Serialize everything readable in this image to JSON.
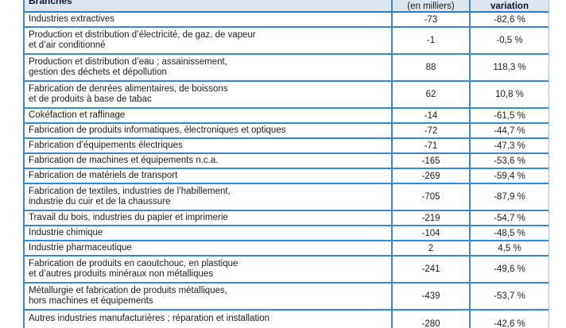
{
  "colors": {
    "border_blue": "#3c89c9",
    "border_blue_dark": "#2e7cc0",
    "border_blue_light": "#9cc2e5",
    "header_background": "#dce6f1",
    "text": "#1c1c1c"
  },
  "table": {
    "header": {
      "branches_label": "Branches",
      "value_unit_label": "(en milliers)",
      "variation_label": "variation"
    },
    "rows": [
      {
        "label": "Industries extractives",
        "value": "-73",
        "variation": "-82,6 %",
        "lines": 1
      },
      {
        "label": "Production et distribution d’électricité, de gaz, de vapeur\net d’air conditionné",
        "value": "-1",
        "variation": "-0,5 %",
        "lines": 2
      },
      {
        "label": "Production et distribution d’eau ; assainissement,\ngestion des déchets et dépollution",
        "value": "88",
        "variation": "118,3 %",
        "lines": 2
      },
      {
        "label": "Fabrication de denrées alimentaires, de boissons\net de produits à base de tabac",
        "value": "62",
        "variation": "10,8 %",
        "lines": 2
      },
      {
        "label": "Cokéfaction et raffinage",
        "value": "-14",
        "variation": "-61,5 %",
        "lines": 1
      },
      {
        "label": "Fabrication de produits informatiques, électroniques et optiques",
        "value": "-72",
        "variation": "-44,7 %",
        "lines": 1
      },
      {
        "label": "Fabrication d’équipements électriques",
        "value": "-71",
        "variation": "-47,3 %",
        "lines": 1
      },
      {
        "label": "Fabrication de machines et équipements n.c.a.",
        "value": "-165",
        "variation": "-53,6 %",
        "lines": 1
      },
      {
        "label": "Fabrication de matériels de transport",
        "value": "-269",
        "variation": "-59,4 %",
        "lines": 1
      },
      {
        "label": "Fabrication de textiles, industries de l’habillement,\nindustrie du cuir et de la chaussure",
        "value": "-705",
        "variation": "-87,9 %",
        "lines": 2
      },
      {
        "label": "Travail du bois, industries du papier et imprimerie",
        "value": "-219",
        "variation": "-54,7 %",
        "lines": 1
      },
      {
        "label": "Industrie chimique",
        "value": "-104",
        "variation": "-48,5 %",
        "lines": 1
      },
      {
        "label": "Industrie pharmaceutique",
        "value": "2",
        "variation": "4,5 %",
        "lines": 1
      },
      {
        "label": "Fabrication de produits en caoutchouc, en plastique\net d’autres produits minéraux non métalliques",
        "value": "-241",
        "variation": "-49,6 %",
        "lines": 2
      },
      {
        "label": "Métallurgie et fabrication de produits métalliques,\nhors machines et équipements",
        "value": "-439",
        "variation": "-53,7 %",
        "lines": 2
      },
      {
        "label": "Autres industries manufacturières ; réparation et installation",
        "value": "-280",
        "variation": "-42,6 %",
        "lines": 1,
        "clipped": true
      }
    ]
  }
}
